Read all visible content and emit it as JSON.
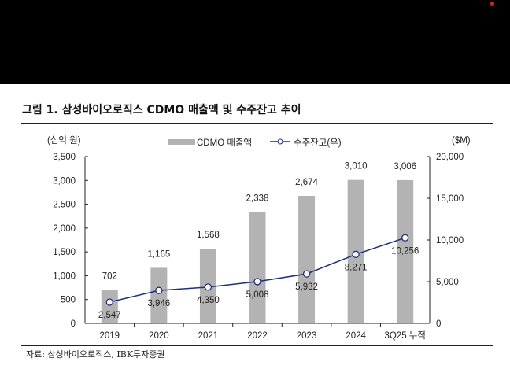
{
  "title": "그림 1. 삼성바이오로직스 CDMO 매출액 및 수주잔고 추이",
  "source": "자료: 삼성바이오로직스, IBK투자증권",
  "chart_data": {
    "type": "bar+line",
    "categories": [
      "2019",
      "2020",
      "2021",
      "2022",
      "2023",
      "2024",
      "3Q25 누적"
    ],
    "series": [
      {
        "name": "CDMO 매출액",
        "axis": "left",
        "type": "bar",
        "color": "#b3b3b3",
        "values": [
          702,
          1165,
          1568,
          2338,
          2674,
          3010,
          3006
        ]
      },
      {
        "name": "수주잔고(우)",
        "axis": "right",
        "type": "line",
        "color": "#1f2f7a",
        "values": [
          2547,
          3946,
          4350,
          5008,
          5932,
          8271,
          10256
        ]
      }
    ],
    "left_axis": {
      "label": "(십억 원)",
      "ylim": [
        0,
        3500
      ],
      "ticks": [
        0,
        500,
        1000,
        1500,
        2000,
        2500,
        3000,
        3500
      ]
    },
    "right_axis": {
      "label": "($M)",
      "ylim": [
        0,
        20000
      ],
      "ticks": [
        0,
        5000,
        10000,
        15000,
        20000
      ]
    },
    "legend": "top-center"
  }
}
